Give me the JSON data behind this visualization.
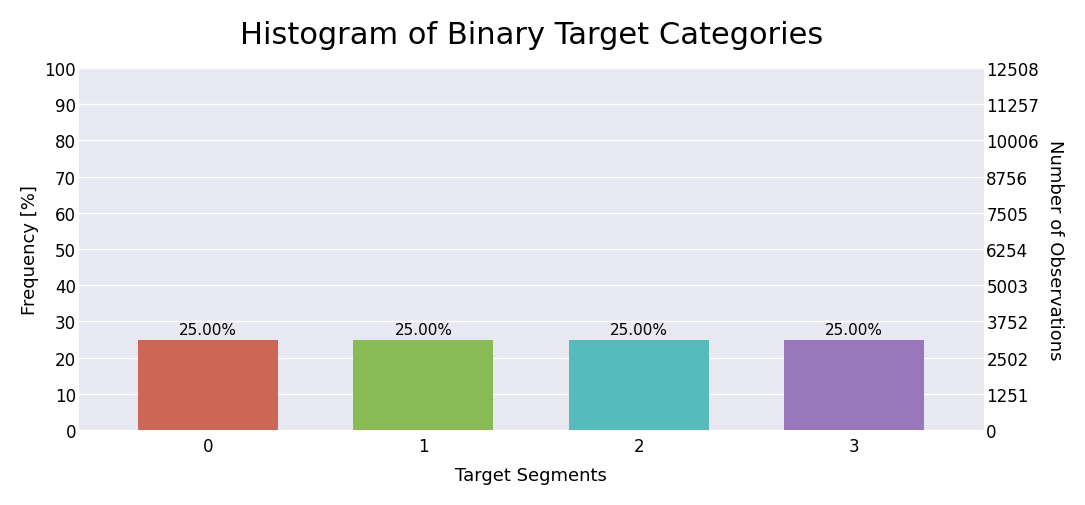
{
  "title": "Histogram of Binary Target Categories",
  "categories": [
    "0",
    "1",
    "2",
    "3"
  ],
  "values": [
    25.0,
    25.0,
    25.0,
    25.0
  ],
  "bar_colors": [
    "#cc6655",
    "#88bb55",
    "#55bbbb",
    "#9977bb"
  ],
  "xlabel": "Target Segments",
  "ylabel_left": "Frequency [%]",
  "ylabel_right": "Number of Observations",
  "ylim_left": [
    0,
    100
  ],
  "yticks_left": [
    0,
    10,
    20,
    30,
    40,
    50,
    60,
    70,
    80,
    90,
    100
  ],
  "yticks_right": [
    0,
    1251,
    2502,
    3752,
    5003,
    6254,
    7505,
    8756,
    10006,
    11257,
    12508
  ],
  "total_observations": 12508,
  "fig_background": "#ffffff",
  "plot_background": "#e8e8f2",
  "title_fontsize": 22,
  "label_fontsize": 13,
  "tick_fontsize": 12,
  "annotation_fontsize": 11
}
